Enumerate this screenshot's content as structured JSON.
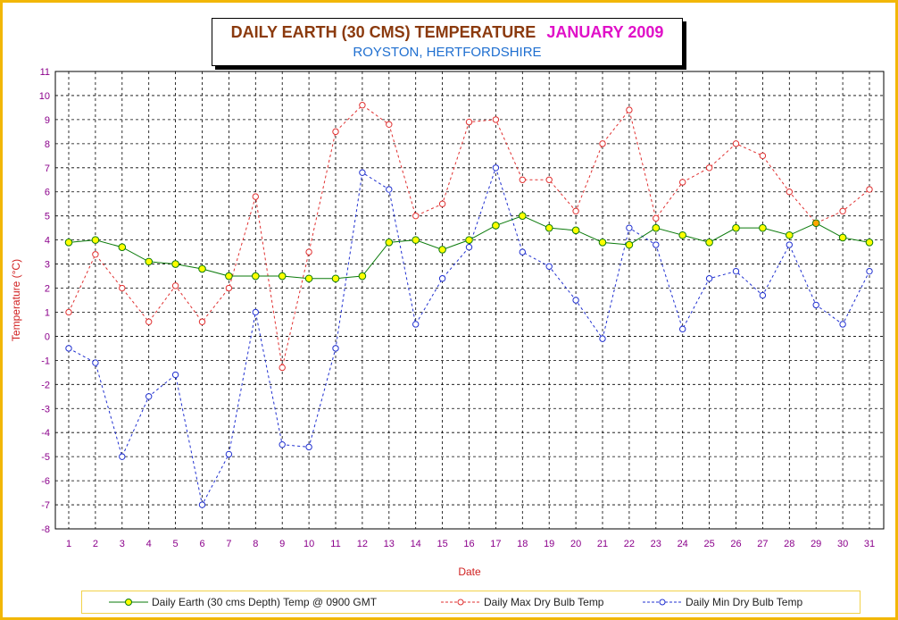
{
  "chart_data": {
    "type": "line",
    "title": "DAILY EARTH (30 CMS) TEMPERATURE",
    "title_month": "JANUARY 2009",
    "subtitle": "ROYSTON, HERTFORDSHIRE",
    "xlabel": "Date",
    "ylabel": "Temperature (°C)",
    "ylim": [
      -8,
      11
    ],
    "grid": true,
    "legend_position": "bottom",
    "x": [
      1,
      2,
      3,
      4,
      5,
      6,
      7,
      8,
      9,
      10,
      11,
      12,
      13,
      14,
      15,
      16,
      17,
      18,
      19,
      20,
      21,
      22,
      23,
      24,
      25,
      26,
      27,
      28,
      29,
      30,
      31
    ],
    "series": [
      {
        "name": "Daily Earth (30 cms Depth) Temp @ 0900 GMT",
        "color": "#0a7a0a",
        "marker_color": "#ffff00",
        "style": "solid",
        "values": [
          3.9,
          4.0,
          3.7,
          3.1,
          3.0,
          2.8,
          2.5,
          2.5,
          2.5,
          2.4,
          2.4,
          2.5,
          3.9,
          4.0,
          3.6,
          4.0,
          4.6,
          5.0,
          4.5,
          4.4,
          3.9,
          3.8,
          4.5,
          4.2,
          3.9,
          4.5,
          4.5,
          4.2,
          4.7,
          4.1,
          3.9
        ]
      },
      {
        "name": "Daily Max Dry Bulb Temp",
        "color": "#e03030",
        "style": "dashed",
        "values": [
          1.0,
          3.4,
          2.0,
          0.6,
          2.1,
          0.6,
          2.0,
          5.8,
          -1.3,
          3.5,
          8.5,
          9.6,
          8.8,
          5.0,
          5.5,
          8.9,
          9.0,
          6.5,
          6.5,
          5.2,
          8.0,
          9.4,
          4.9,
          6.4,
          7.0,
          8.0,
          7.5,
          6.0,
          4.7,
          5.2,
          6.1
        ]
      },
      {
        "name": "Daily Min Dry Bulb Temp",
        "color": "#2030d0",
        "style": "dashed",
        "values": [
          -0.5,
          -1.1,
          -5.0,
          -2.5,
          -1.6,
          -7.0,
          -4.9,
          1.0,
          -4.5,
          -4.6,
          -0.5,
          6.8,
          6.1,
          0.5,
          2.4,
          3.7,
          7.0,
          3.5,
          2.9,
          1.5,
          -0.1,
          4.5,
          3.8,
          0.3,
          2.4,
          2.7,
          1.7,
          3.8,
          1.3,
          0.5,
          2.7
        ]
      }
    ],
    "highlight": {
      "x": 29,
      "value": 4.7,
      "color": "#ffa500"
    },
    "axis_color": "#8b008b",
    "ylabel_color": "#d02020",
    "xlabel_color": "#d02020"
  }
}
